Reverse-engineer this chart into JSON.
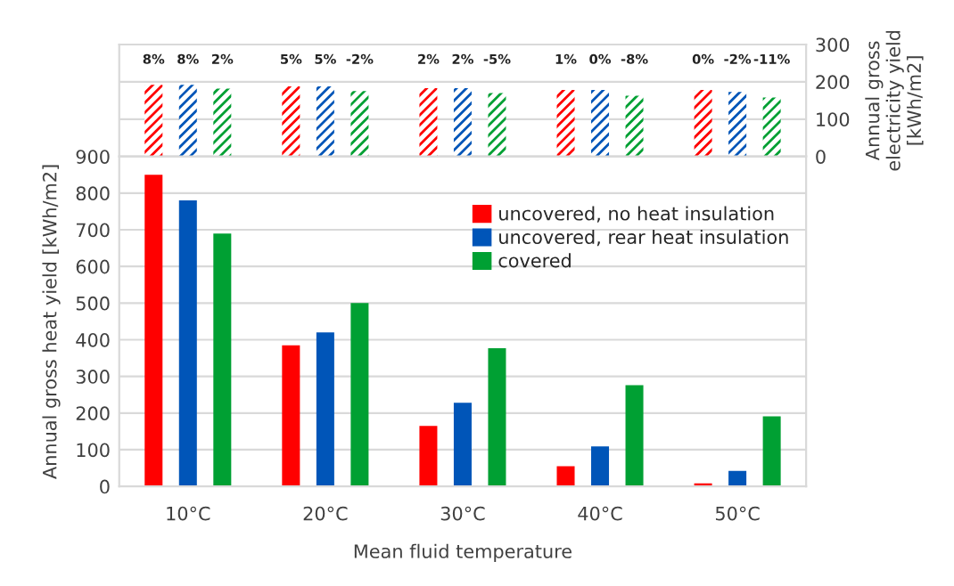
{
  "chart_data": [
    {
      "type": "bar",
      "categories": [
        null,
        null,
        null,
        null,
        null
      ],
      "ylabel": "Annual gross\nelectricity yield\n[kWh/m2]",
      "ylim": [
        0,
        300
      ],
      "yticks": [
        0,
        100,
        200,
        300
      ],
      "grid": "y",
      "tick_labels": "y",
      "annotations": [
        "8%",
        "8%",
        "2%",
        "5%",
        "5%",
        "-2%",
        "2%",
        "2%",
        "-5%",
        "1%",
        "0%",
        "-8%",
        "0%",
        "-2%",
        "-11%"
      ],
      "series": [
        {
          "color": "#ff0000",
          "values": [
            192,
            188,
            183,
            178,
            178
          ]
        },
        {
          "color": "#0055b8",
          "values": [
            192,
            188,
            183,
            178,
            173
          ]
        },
        {
          "color": "#00a033",
          "values": [
            182,
            175,
            170,
            163,
            158
          ]
        }
      ]
    },
    {
      "type": "bar",
      "categories": [
        "10°C",
        "20°C",
        "30°C",
        "40°C",
        "50°C"
      ],
      "xlabel": "Mean fluid temperature",
      "ylabel": "Annual gross heat yield [kWh/m2]",
      "ylim": [
        0,
        900
      ],
      "yticks": [
        0,
        100,
        200,
        300,
        400,
        500,
        600,
        700,
        800,
        900
      ],
      "grid": "y",
      "legend": "top right",
      "series": [
        {
          "name": "uncovered, no heat insulation",
          "color": "#ff0000",
          "values": [
            850,
            385,
            165,
            55,
            8
          ]
        },
        {
          "name": "uncovered, rear heat insulation",
          "color": "#0055b8",
          "values": [
            780,
            420,
            228,
            109,
            42
          ]
        },
        {
          "name": "covered",
          "color": "#00a033",
          "values": [
            690,
            500,
            377,
            276,
            191
          ]
        }
      ]
    }
  ]
}
